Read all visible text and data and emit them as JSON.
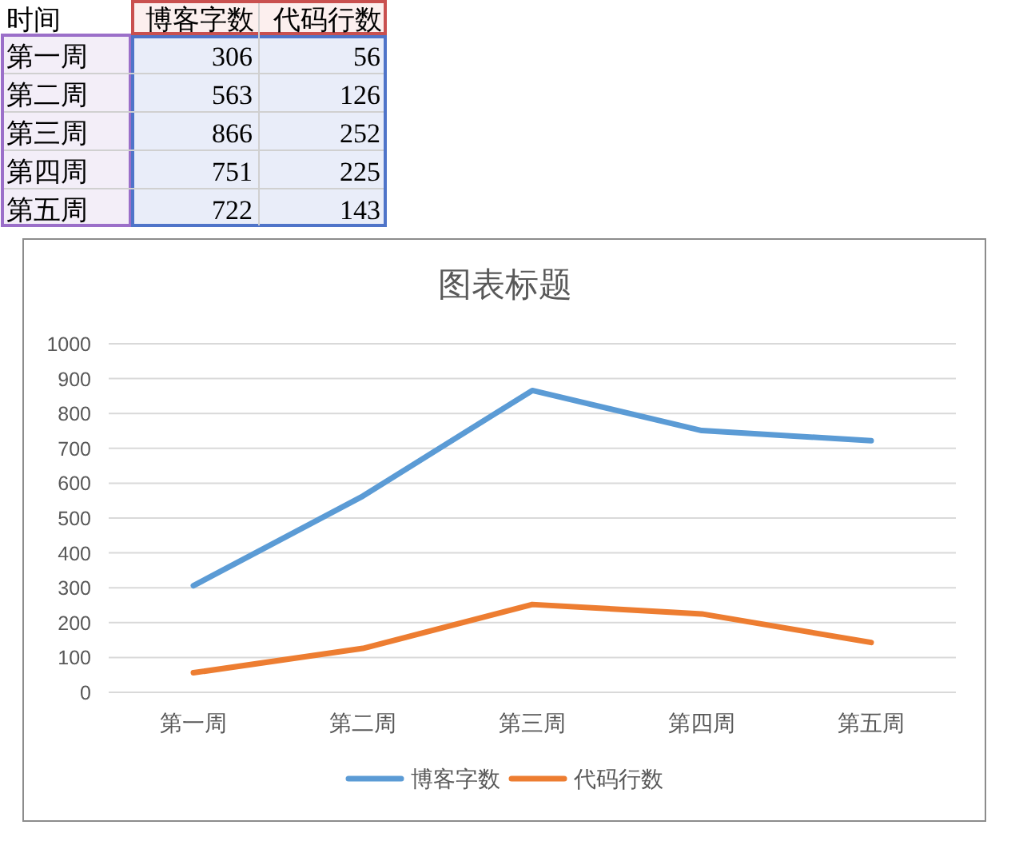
{
  "chart_data": [
    {
      "type": "other",
      "annotations": [
        "时间"
      ],
      "categories": [
        "第一周",
        "第二周",
        "第三周",
        "第四周",
        "第五周"
      ],
      "series": [
        {
          "name": "博客字数",
          "values": [
            306,
            563,
            866,
            751,
            722
          ]
        },
        {
          "name": "代码行数",
          "values": [
            56,
            126,
            252,
            225,
            143
          ]
        }
      ],
      "data_labels": true
    },
    {
      "type": "line",
      "title": "图表标题",
      "categories": [
        "第一周",
        "第二周",
        "第三周",
        "第四周",
        "第五周"
      ],
      "series": [
        {
          "name": "博客字数",
          "color": "#5b9bd5",
          "values": [
            306,
            563,
            866,
            751,
            722
          ]
        },
        {
          "name": "代码行数",
          "color": "#ed7d31",
          "values": [
            56,
            126,
            252,
            225,
            143
          ]
        }
      ],
      "ylim": [
        0,
        1000
      ],
      "yticks": [
        0,
        100,
        200,
        300,
        400,
        500,
        600,
        700,
        800,
        900,
        1000
      ],
      "grid": "y",
      "legend": "bottom"
    }
  ]
}
